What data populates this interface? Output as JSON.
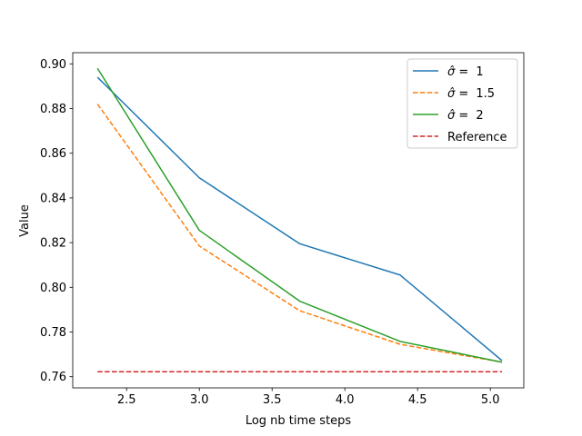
{
  "chart_data": {
    "type": "line",
    "title": "",
    "xlabel": "Log nb time  steps",
    "ylabel": "Value",
    "xlim": [
      2.13,
      5.23
    ],
    "ylim": [
      0.755,
      0.905
    ],
    "xticks": [
      2.5,
      3.0,
      3.5,
      4.0,
      4.5,
      5.0
    ],
    "xtick_labels": [
      "2.5",
      "3.0",
      "3.5",
      "4.0",
      "4.5",
      "5.0"
    ],
    "yticks": [
      0.76,
      0.78,
      0.8,
      0.82,
      0.84,
      0.86,
      0.88,
      0.9
    ],
    "ytick_labels": [
      "0.76",
      "0.78",
      "0.80",
      "0.82",
      "0.84",
      "0.86",
      "0.88",
      "0.90"
    ],
    "grid": false,
    "legend_position": "top-right",
    "series": [
      {
        "name_prefix": "σ̂ = ",
        "name_value": "1",
        "color": "#1f77b4",
        "dash": "solid",
        "x": [
          2.3,
          3.0,
          3.69,
          4.38,
          5.08
        ],
        "y": [
          0.894,
          0.849,
          0.8195,
          0.8055,
          0.7672
        ]
      },
      {
        "name_prefix": "σ̂ = ",
        "name_value": "1.5",
        "color": "#ff7f0e",
        "dash": "dashed",
        "x": [
          2.3,
          3.0,
          3.69,
          4.38,
          5.08
        ],
        "y": [
          0.882,
          0.8185,
          0.7895,
          0.7745,
          0.7665
        ]
      },
      {
        "name_prefix": "σ̂ = ",
        "name_value": "2",
        "color": "#2ca02c",
        "dash": "solid",
        "x": [
          2.3,
          3.0,
          3.69,
          4.38,
          5.08
        ],
        "y": [
          0.898,
          0.8255,
          0.7938,
          0.7758,
          0.7665
        ]
      },
      {
        "name": "Reference",
        "color": "#d62728",
        "dash": "dashed",
        "x": [
          2.3,
          5.08
        ],
        "y": [
          0.7622,
          0.7622
        ]
      }
    ]
  }
}
